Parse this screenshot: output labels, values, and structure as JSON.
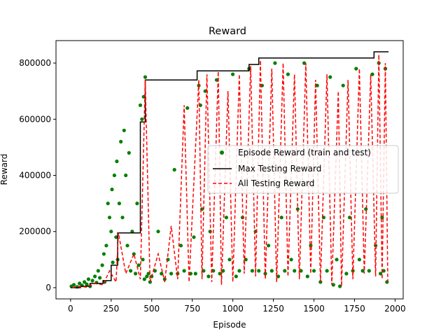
{
  "chart_data": {
    "type": "line",
    "title": "Reward",
    "xlabel": "Episode",
    "ylabel": "Reward",
    "xlim": [
      -90,
      2050
    ],
    "ylim": [
      -40000,
      880000
    ],
    "xticks": [
      0,
      250,
      500,
      750,
      1000,
      1250,
      1500,
      1750,
      2000
    ],
    "yticks": [
      0,
      200000,
      400000,
      600000,
      800000
    ],
    "xtick_labels": [
      "0",
      "250",
      "500",
      "750",
      "1000",
      "1250",
      "1500",
      "1750",
      "2000"
    ],
    "ytick_labels": [
      "0",
      "200000",
      "400000",
      "600000",
      "800000"
    ],
    "grid": false,
    "legend_position": "center-right",
    "legend": [
      "Episode Reward (train and test)",
      "Max Testing Reward",
      "All Testing Reward"
    ],
    "series": [
      {
        "name": "Episode Reward (train and test)",
        "kind": "scatter",
        "color": "#008000",
        "points": [
          [
            5,
            5000
          ],
          [
            20,
            10000
          ],
          [
            40,
            3000
          ],
          [
            55,
            15000
          ],
          [
            70,
            8000
          ],
          [
            85,
            20000
          ],
          [
            100,
            12000
          ],
          [
            110,
            30000
          ],
          [
            120,
            5000
          ],
          [
            135,
            25000
          ],
          [
            150,
            40000
          ],
          [
            160,
            18000
          ],
          [
            170,
            60000
          ],
          [
            180,
            35000
          ],
          [
            195,
            80000
          ],
          [
            205,
            120000
          ],
          [
            210,
            20000
          ],
          [
            220,
            150000
          ],
          [
            230,
            300000
          ],
          [
            240,
            250000
          ],
          [
            250,
            200000
          ],
          [
            255,
            350000
          ],
          [
            260,
            90000
          ],
          [
            270,
            400000
          ],
          [
            280,
            180000
          ],
          [
            285,
            450000
          ],
          [
            290,
            100000
          ],
          [
            300,
            300000
          ],
          [
            310,
            520000
          ],
          [
            320,
            250000
          ],
          [
            330,
            560000
          ],
          [
            340,
            400000
          ],
          [
            350,
            150000
          ],
          [
            360,
            480000
          ],
          [
            370,
            60000
          ],
          [
            380,
            200000
          ],
          [
            390,
            120000
          ],
          [
            400,
            50000
          ],
          [
            410,
            300000
          ],
          [
            420,
            80000
          ],
          [
            430,
            650000
          ],
          [
            440,
            600000
          ],
          [
            445,
            100000
          ],
          [
            450,
            680000
          ],
          [
            455,
            30000
          ],
          [
            460,
            750000
          ],
          [
            470,
            40000
          ],
          [
            480,
            50000
          ],
          [
            490,
            20000
          ],
          [
            500,
            40000
          ],
          [
            520,
            60000
          ],
          [
            540,
            200000
          ],
          [
            560,
            50000
          ],
          [
            580,
            30000
          ],
          [
            600,
            100000
          ],
          [
            620,
            50000
          ],
          [
            640,
            420000
          ],
          [
            660,
            50000
          ],
          [
            680,
            150000
          ],
          [
            700,
            60000
          ],
          [
            720,
            640000
          ],
          [
            740,
            50000
          ],
          [
            760,
            180000
          ],
          [
            770,
            50000
          ],
          [
            790,
            720000
          ],
          [
            800,
            650000
          ],
          [
            810,
            280000
          ],
          [
            820,
            60000
          ],
          [
            830,
            700000
          ],
          [
            850,
            40000
          ],
          [
            860,
            200000
          ],
          [
            880,
            60000
          ],
          [
            900,
            740000
          ],
          [
            920,
            50000
          ],
          [
            940,
            60000
          ],
          [
            960,
            250000
          ],
          [
            980,
            100000
          ],
          [
            1000,
            760000
          ],
          [
            1020,
            40000
          ],
          [
            1040,
            60000
          ],
          [
            1060,
            250000
          ],
          [
            1080,
            100000
          ],
          [
            1100,
            780000
          ],
          [
            1120,
            60000
          ],
          [
            1140,
            200000
          ],
          [
            1160,
            60000
          ],
          [
            1180,
            720000
          ],
          [
            1200,
            50000
          ],
          [
            1220,
            150000
          ],
          [
            1240,
            60000
          ],
          [
            1260,
            800000
          ],
          [
            1280,
            40000
          ],
          [
            1300,
            250000
          ],
          [
            1320,
            60000
          ],
          [
            1340,
            760000
          ],
          [
            1360,
            100000
          ],
          [
            1380,
            60000
          ],
          [
            1400,
            280000
          ],
          [
            1420,
            60000
          ],
          [
            1440,
            800000
          ],
          [
            1460,
            40000
          ],
          [
            1480,
            150000
          ],
          [
            1500,
            60000
          ],
          [
            1520,
            720000
          ],
          [
            1540,
            20000
          ],
          [
            1560,
            250000
          ],
          [
            1580,
            60000
          ],
          [
            1600,
            750000
          ],
          [
            1620,
            10000
          ],
          [
            1640,
            100000
          ],
          [
            1660,
            5000
          ],
          [
            1680,
            720000
          ],
          [
            1700,
            50000
          ],
          [
            1720,
            250000
          ],
          [
            1740,
            60000
          ],
          [
            1760,
            780000
          ],
          [
            1780,
            100000
          ],
          [
            1800,
            60000
          ],
          [
            1820,
            280000
          ],
          [
            1840,
            60000
          ],
          [
            1860,
            760000
          ],
          [
            1880,
            150000
          ],
          [
            1900,
            800000
          ],
          [
            1910,
            50000
          ],
          [
            1920,
            250000
          ],
          [
            1930,
            60000
          ],
          [
            1940,
            780000
          ],
          [
            1950,
            20000
          ]
        ]
      },
      {
        "name": "Max Testing Reward",
        "kind": "line",
        "color": "#000000",
        "dash": "solid",
        "points": [
          [
            0,
            0
          ],
          [
            60,
            0
          ],
          [
            60,
            5000
          ],
          [
            120,
            5000
          ],
          [
            120,
            15000
          ],
          [
            200,
            15000
          ],
          [
            200,
            25000
          ],
          [
            250,
            25000
          ],
          [
            250,
            80000
          ],
          [
            290,
            80000
          ],
          [
            290,
            195000
          ],
          [
            430,
            195000
          ],
          [
            430,
            590000
          ],
          [
            460,
            590000
          ],
          [
            460,
            740000
          ],
          [
            780,
            740000
          ],
          [
            780,
            772000
          ],
          [
            1100,
            772000
          ],
          [
            1100,
            795000
          ],
          [
            1160,
            795000
          ],
          [
            1160,
            818000
          ],
          [
            1870,
            818000
          ],
          [
            1870,
            840000
          ],
          [
            1960,
            840000
          ]
        ]
      },
      {
        "name": "All Testing Reward",
        "kind": "line",
        "color": "#ff0000",
        "dash": "dashed",
        "points": [
          [
            10,
            0
          ],
          [
            50,
            5000
          ],
          [
            100,
            2000
          ],
          [
            150,
            15000
          ],
          [
            200,
            10000
          ],
          [
            240,
            60000
          ],
          [
            280,
            20000
          ],
          [
            295,
            195000
          ],
          [
            340,
            50000
          ],
          [
            390,
            120000
          ],
          [
            430,
            30000
          ],
          [
            460,
            740000
          ],
          [
            490,
            20000
          ],
          [
            540,
            120000
          ],
          [
            580,
            20000
          ],
          [
            620,
            220000
          ],
          [
            660,
            30000
          ],
          [
            700,
            650000
          ],
          [
            730,
            20000
          ],
          [
            790,
            740000
          ],
          [
            810,
            30000
          ],
          [
            840,
            760000
          ],
          [
            870,
            20000
          ],
          [
            910,
            770000
          ],
          [
            930,
            10000
          ],
          [
            970,
            700000
          ],
          [
            1000,
            20000
          ],
          [
            1040,
            760000
          ],
          [
            1070,
            50000
          ],
          [
            1110,
            790000
          ],
          [
            1140,
            40000
          ],
          [
            1170,
            810000
          ],
          [
            1200,
            30000
          ],
          [
            1240,
            780000
          ],
          [
            1270,
            20000
          ],
          [
            1310,
            800000
          ],
          [
            1340,
            40000
          ],
          [
            1380,
            760000
          ],
          [
            1410,
            30000
          ],
          [
            1450,
            800000
          ],
          [
            1480,
            50000
          ],
          [
            1510,
            740000
          ],
          [
            1540,
            20000
          ],
          [
            1580,
            760000
          ],
          [
            1610,
            10000
          ],
          [
            1650,
            700000
          ],
          [
            1670,
            5000
          ],
          [
            1710,
            740000
          ],
          [
            1740,
            30000
          ],
          [
            1780,
            780000
          ],
          [
            1810,
            50000
          ],
          [
            1850,
            760000
          ],
          [
            1880,
            40000
          ],
          [
            1900,
            830000
          ],
          [
            1920,
            30000
          ],
          [
            1940,
            800000
          ],
          [
            1955,
            20000
          ]
        ]
      }
    ]
  }
}
